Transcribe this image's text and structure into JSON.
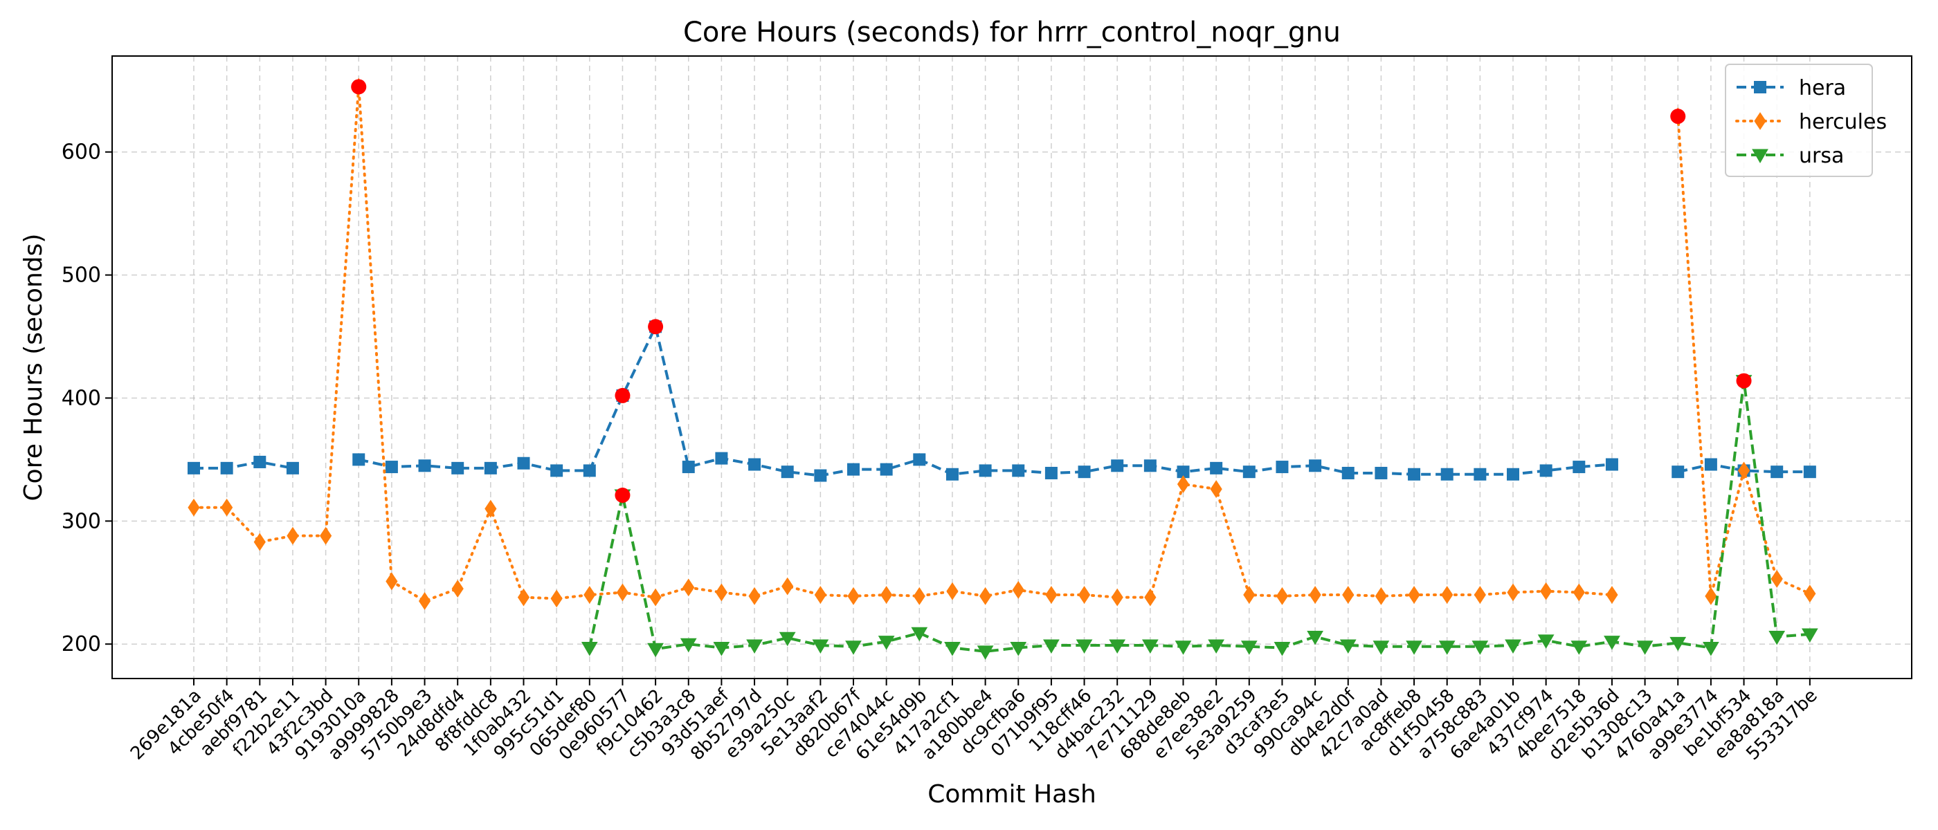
{
  "chart_data": {
    "type": "line",
    "title": "Core Hours (seconds) for hrrr_control_noqr_gnu",
    "xlabel": "Commit Hash",
    "ylabel": "Core Hours (seconds)",
    "ylim": [
      172,
      678
    ],
    "yticks": [
      200,
      300,
      400,
      500,
      600
    ],
    "grid": true,
    "legend_position": "top-right",
    "outlier_color": "#ff0000",
    "categories": [
      "269e181a",
      "4cbe50f4",
      "aebf9781",
      "f22b2e11",
      "43f2c3bd",
      "9193010a",
      "a9999828",
      "5750b9e3",
      "24d8dfd4",
      "8f8fddc8",
      "1f0ab432",
      "995c51d1",
      "065def80",
      "0e960577",
      "f9c10462",
      "c5b3a3c8",
      "93d51aef",
      "8b52797d",
      "e39a250c",
      "5e13aaf2",
      "d820b67f",
      "ce74044c",
      "61e54d9b",
      "417a2cf1",
      "a180bbe4",
      "dc9cfba6",
      "071b9f95",
      "118cff46",
      "d4bac232",
      "7e711129",
      "688de8eb",
      "e7ee38e2",
      "5e3a9259",
      "d3caf3e5",
      "990ca94c",
      "db4e2d0f",
      "42c7a0ad",
      "ac8ffeb8",
      "d1f50458",
      "a758c883",
      "6ae4a01b",
      "437cf974",
      "4bee7518",
      "d2e5b36d",
      "b1308c13",
      "4760a41a",
      "a99e3774",
      "be1bf534",
      "ea8a818a",
      "553317be"
    ],
    "series": [
      {
        "name": "hera",
        "color": "#1f77b4",
        "marker": "square",
        "line_style": "dashed",
        "values": [
          343,
          343,
          348,
          343,
          null,
          350,
          344,
          345,
          343,
          343,
          347,
          341,
          341,
          402,
          458,
          344,
          351,
          346,
          340,
          337,
          342,
          342,
          350,
          338,
          341,
          341,
          339,
          340,
          345,
          345,
          340,
          343,
          340,
          344,
          345,
          339,
          339,
          338,
          338,
          338,
          338,
          341,
          344,
          346,
          null,
          340,
          346,
          341,
          340,
          340
        ],
        "outliers": [
          13,
          14
        ]
      },
      {
        "name": "hercules",
        "color": "#ff7f0e",
        "marker": "diamond",
        "line_style": "dotted",
        "values": [
          311,
          311,
          283,
          288,
          288,
          653,
          251,
          235,
          245,
          310,
          238,
          237,
          240,
          242,
          238,
          246,
          242,
          239,
          247,
          240,
          239,
          240,
          239,
          243,
          239,
          244,
          240,
          240,
          238,
          238,
          330,
          326,
          240,
          239,
          240,
          240,
          239,
          240,
          240,
          240,
          242,
          243,
          242,
          240,
          null,
          629,
          239,
          341,
          253,
          241
        ],
        "outliers": [
          5,
          45
        ]
      },
      {
        "name": "ursa",
        "color": "#2ca02c",
        "marker": "triangle-down",
        "line_style": "dashed",
        "values": [
          null,
          null,
          null,
          null,
          null,
          null,
          null,
          null,
          null,
          null,
          null,
          null,
          197,
          321,
          196,
          200,
          197,
          199,
          205,
          199,
          198,
          202,
          209,
          197,
          194,
          197,
          199,
          199,
          199,
          199,
          198,
          199,
          198,
          197,
          206,
          199,
          198,
          198,
          198,
          198,
          199,
          203,
          198,
          202,
          198,
          201,
          197,
          414,
          206,
          208
        ],
        "outliers": [
          13,
          47
        ]
      }
    ]
  }
}
